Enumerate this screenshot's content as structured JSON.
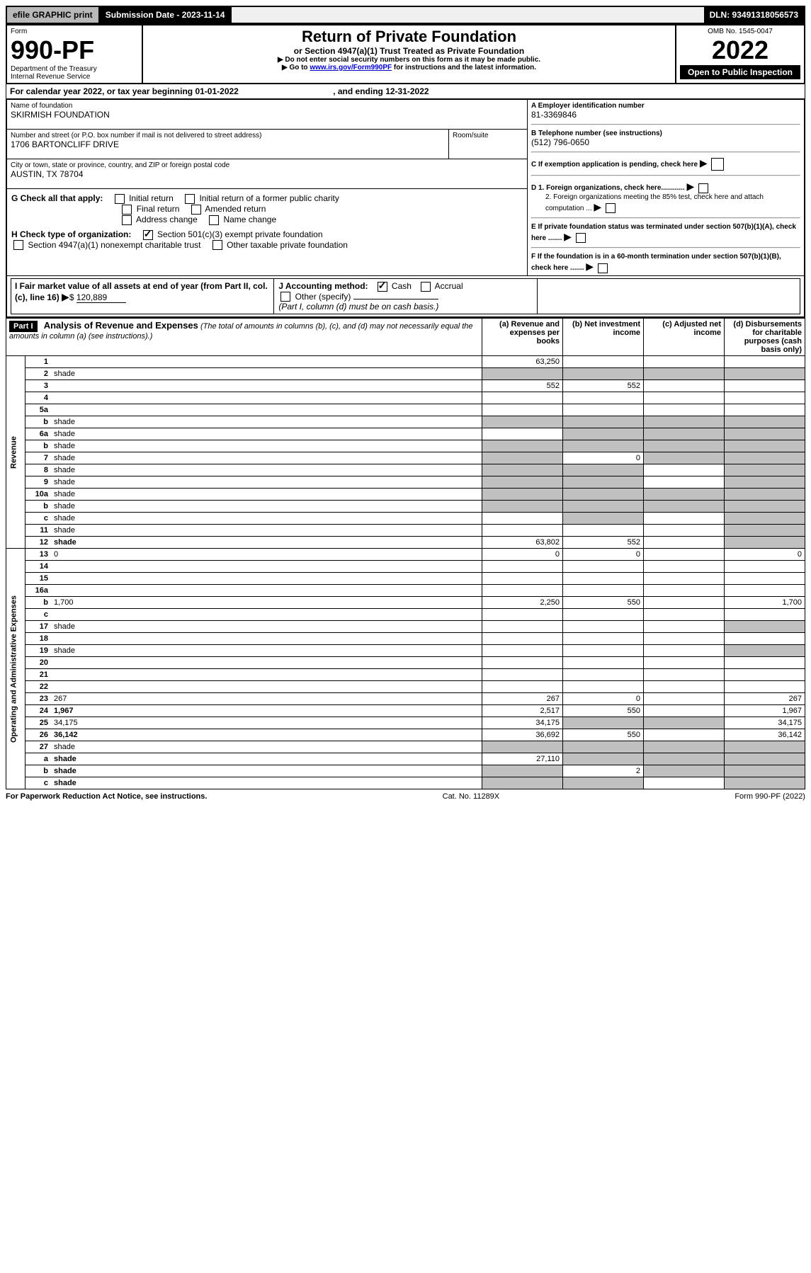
{
  "topbar": {
    "efile": "efile GRAPHIC print",
    "subdate_label": "Submission Date - 2023-11-14",
    "dln": "DLN: 93491318056573"
  },
  "header": {
    "form_label": "Form",
    "form_number": "990-PF",
    "dept": "Department of the Treasury",
    "irs": "Internal Revenue Service",
    "title": "Return of Private Foundation",
    "subtitle": "or Section 4947(a)(1) Trust Treated as Private Foundation",
    "note1": "▶ Do not enter social security numbers on this form as it may be made public.",
    "note2_prefix": "▶ Go to ",
    "note2_link": "www.irs.gov/Form990PF",
    "note2_suffix": " for instructions and the latest information.",
    "omb": "OMB No. 1545-0047",
    "year": "2022",
    "open_public": "Open to Public Inspection"
  },
  "calendar": {
    "prefix": "For calendar year 2022, or tax year beginning ",
    "begin": "01-01-2022",
    "mid": " , and ending ",
    "end": "12-31-2022"
  },
  "info": {
    "name_label": "Name of foundation",
    "name": "SKIRMISH FOUNDATION",
    "addr_label": "Number and street (or P.O. box number if mail is not delivered to street address)",
    "addr": "1706 BARTONCLIFF DRIVE",
    "room_label": "Room/suite",
    "city_label": "City or town, state or province, country, and ZIP or foreign postal code",
    "city": "AUSTIN, TX  78704",
    "a_label": "A Employer identification number",
    "a_val": "81-3369846",
    "b_label": "B Telephone number (see instructions)",
    "b_val": "(512) 796-0650",
    "c_label": "C If exemption application is pending, check here",
    "d1_label": "D 1. Foreign organizations, check here............",
    "d2_label": "2. Foreign organizations meeting the 85% test, check here and attach computation ...",
    "e_label": "E  If private foundation status was terminated under section 507(b)(1)(A), check here .......",
    "f_label": "F  If the foundation is in a 60-month termination under section 507(b)(1)(B), check here .......",
    "g_label": "G Check all that apply:",
    "g_opts": [
      "Initial return",
      "Initial return of a former public charity",
      "Final return",
      "Amended return",
      "Address change",
      "Name change"
    ],
    "h_label": "H Check type of organization:",
    "h_opt1": "Section 501(c)(3) exempt private foundation",
    "h_opt2": "Section 4947(a)(1) nonexempt charitable trust",
    "h_opt3": "Other taxable private foundation",
    "i_label": "I Fair market value of all assets at end of year (from Part II, col. (c), line 16)",
    "i_val": "120,889",
    "j_label": "J Accounting method:",
    "j_cash": "Cash",
    "j_accrual": "Accrual",
    "j_other": "Other (specify)",
    "j_note": "(Part I, column (d) must be on cash basis.)"
  },
  "part1": {
    "label": "Part I",
    "title": "Analysis of Revenue and Expenses",
    "title_note": "(The total of amounts in columns (b), (c), and (d) may not necessarily equal the amounts in column (a) (see instructions).)",
    "cols": {
      "a": "(a)  Revenue and expenses per books",
      "b": "(b)  Net investment income",
      "c": "(c)  Adjusted net income",
      "d": "(d)  Disbursements for charitable purposes (cash basis only)"
    },
    "side_rev": "Revenue",
    "side_exp": "Operating and Administrative Expenses",
    "rows": [
      {
        "n": "1",
        "d": "",
        "a": "63,250",
        "b": "",
        "c": "",
        "shade_c": false,
        "shade_d": false
      },
      {
        "n": "2",
        "d": "shade",
        "a": "shade",
        "b": "shade",
        "c": "shade"
      },
      {
        "n": "3",
        "d": "",
        "a": "552",
        "b": "552",
        "c": ""
      },
      {
        "n": "4",
        "d": "",
        "a": "",
        "b": "",
        "c": ""
      },
      {
        "n": "5a",
        "d": "",
        "a": "",
        "b": "",
        "c": ""
      },
      {
        "n": "b",
        "d": "shade",
        "a": "shade",
        "b": "shade",
        "c": "shade"
      },
      {
        "n": "6a",
        "d": "shade",
        "a": "",
        "b": "shade",
        "c": "shade"
      },
      {
        "n": "b",
        "d": "shade",
        "a": "shade",
        "b": "shade",
        "c": "shade"
      },
      {
        "n": "7",
        "d": "shade",
        "a": "shade",
        "b": "0",
        "c": "shade"
      },
      {
        "n": "8",
        "d": "shade",
        "a": "shade",
        "b": "shade",
        "c": ""
      },
      {
        "n": "9",
        "d": "shade",
        "a": "shade",
        "b": "shade",
        "c": ""
      },
      {
        "n": "10a",
        "d": "shade",
        "a": "shade",
        "b": "shade",
        "c": "shade"
      },
      {
        "n": "b",
        "d": "shade",
        "a": "shade",
        "b": "shade",
        "c": "shade"
      },
      {
        "n": "c",
        "d": "shade",
        "a": "",
        "b": "shade",
        "c": ""
      },
      {
        "n": "11",
        "d": "shade",
        "a": "",
        "b": "",
        "c": ""
      },
      {
        "n": "12",
        "d": "shade",
        "bold": true,
        "a": "63,802",
        "b": "552",
        "c": ""
      },
      {
        "n": "13",
        "d": "0",
        "a": "0",
        "b": "0",
        "c": ""
      },
      {
        "n": "14",
        "d": "",
        "a": "",
        "b": "",
        "c": ""
      },
      {
        "n": "15",
        "d": "",
        "a": "",
        "b": "",
        "c": ""
      },
      {
        "n": "16a",
        "d": "",
        "a": "",
        "b": "",
        "c": ""
      },
      {
        "n": "b",
        "d": "1,700",
        "a": "2,250",
        "b": "550",
        "c": ""
      },
      {
        "n": "c",
        "d": "",
        "a": "",
        "b": "",
        "c": ""
      },
      {
        "n": "17",
        "d": "shade",
        "a": "",
        "b": "",
        "c": ""
      },
      {
        "n": "18",
        "d": "",
        "a": "",
        "b": "",
        "c": ""
      },
      {
        "n": "19",
        "d": "shade",
        "a": "",
        "b": "",
        "c": ""
      },
      {
        "n": "20",
        "d": "",
        "a": "",
        "b": "",
        "c": ""
      },
      {
        "n": "21",
        "d": "",
        "a": "",
        "b": "",
        "c": ""
      },
      {
        "n": "22",
        "d": "",
        "a": "",
        "b": "",
        "c": ""
      },
      {
        "n": "23",
        "d": "267",
        "a": "267",
        "b": "0",
        "c": ""
      },
      {
        "n": "24",
        "d": "1,967",
        "bold": true,
        "a": "2,517",
        "b": "550",
        "c": ""
      },
      {
        "n": "25",
        "d": "34,175",
        "a": "34,175",
        "b": "shade",
        "c": "shade"
      },
      {
        "n": "26",
        "d": "36,142",
        "bold": true,
        "a": "36,692",
        "b": "550",
        "c": ""
      },
      {
        "n": "27",
        "d": "shade",
        "a": "shade",
        "b": "shade",
        "c": "shade"
      },
      {
        "n": "a",
        "d": "shade",
        "bold": true,
        "a": "27,110",
        "b": "shade",
        "c": "shade"
      },
      {
        "n": "b",
        "d": "shade",
        "bold": true,
        "a": "shade",
        "b": "2",
        "c": "shade"
      },
      {
        "n": "c",
        "d": "shade",
        "bold": true,
        "a": "shade",
        "b": "shade",
        "c": ""
      }
    ]
  },
  "footer": {
    "left": "For Paperwork Reduction Act Notice, see instructions.",
    "mid": "Cat. No. 11289X",
    "right": "Form 990-PF (2022)"
  }
}
